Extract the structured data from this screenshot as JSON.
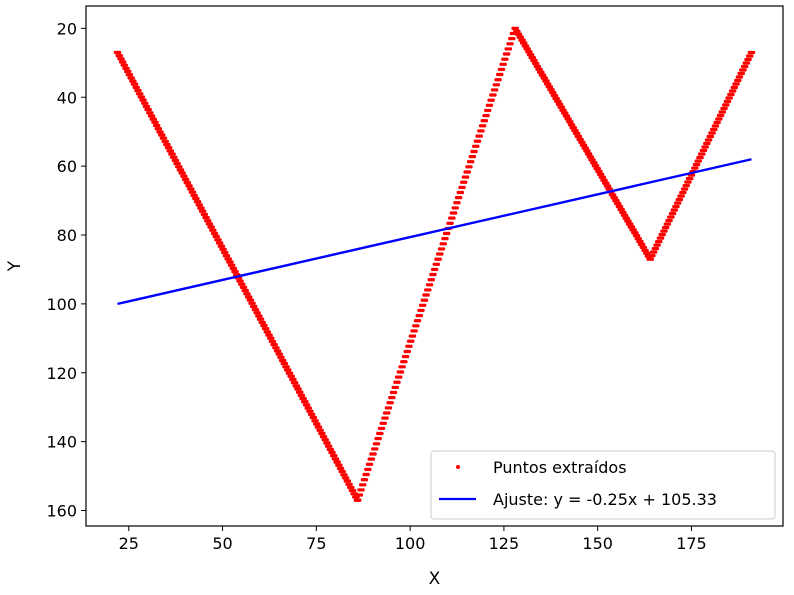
{
  "chart_data": {
    "type": "scatter",
    "xlabel": "X",
    "ylabel": "Y",
    "xlim": [
      13.6,
      199.4
    ],
    "ylim": [
      13.5,
      164.5
    ],
    "y_inverted": true,
    "grid": false,
    "legend_placement": "lower-right",
    "x_ticks": [
      {
        "v": 25,
        "label": "25"
      },
      {
        "v": 50,
        "label": "50"
      },
      {
        "v": 75,
        "label": "75"
      },
      {
        "v": 100,
        "label": "100"
      },
      {
        "v": 125,
        "label": "125"
      },
      {
        "v": 150,
        "label": "150"
      },
      {
        "v": 175,
        "label": "175"
      }
    ],
    "y_ticks": [
      {
        "v": 20,
        "label": "20"
      },
      {
        "v": 40,
        "label": "40"
      },
      {
        "v": 60,
        "label": "60"
      },
      {
        "v": 80,
        "label": "80"
      },
      {
        "v": 100,
        "label": "100"
      },
      {
        "v": 120,
        "label": "120"
      },
      {
        "v": 140,
        "label": "140"
      },
      {
        "v": 160,
        "label": "160"
      }
    ],
    "series": [
      {
        "name": "Puntos extraídos",
        "kind": "scatter",
        "color": "#ff0000",
        "vertices": [
          [
            22,
            27
          ],
          [
            86,
            157
          ],
          [
            128,
            20
          ],
          [
            164,
            87
          ],
          [
            191,
            27
          ]
        ],
        "thickness": 4
      },
      {
        "name": "Ajuste: y = -0.25x + 105.33",
        "kind": "line",
        "color": "#0000ff",
        "x": [
          22,
          191
        ],
        "y": [
          100,
          58
        ]
      }
    ]
  }
}
